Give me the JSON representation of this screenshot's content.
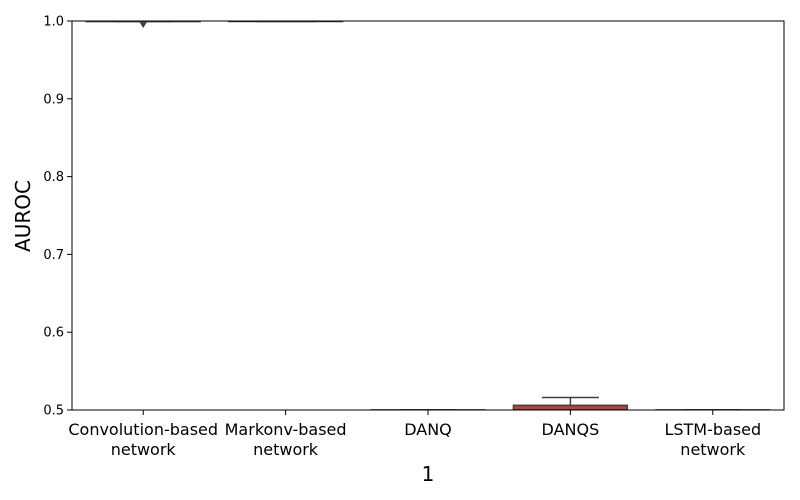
{
  "chart_data": {
    "type": "box",
    "title": "",
    "xlabel": "1",
    "ylabel": "AUROC",
    "ylim": [
      0.5,
      1.0
    ],
    "yticks": [
      "0.5",
      "0.6",
      "0.7",
      "0.8",
      "0.9",
      "1.0"
    ],
    "categories": [
      {
        "label_lines": [
          "Convolution-based",
          "network"
        ],
        "q1": 0.9995,
        "median": 0.9997,
        "q3": 0.9999,
        "whisker_low": 0.9993,
        "whisker_high": 1.0,
        "outliers": [
          0.9935
        ],
        "color": "#3a5fa8"
      },
      {
        "label_lines": [
          "Markonv-based",
          "network"
        ],
        "q1": 0.9996,
        "median": 0.9998,
        "q3": 1.0,
        "whisker_low": 0.9994,
        "whisker_high": 1.0,
        "outliers": [],
        "color": "#e07b39"
      },
      {
        "label_lines": [
          "DANQ"
        ],
        "q1": 0.5,
        "median": 0.5,
        "q3": 0.5,
        "whisker_low": 0.5,
        "whisker_high": 0.5,
        "outliers": [],
        "color": "#3a923a"
      },
      {
        "label_lines": [
          "DANQS"
        ],
        "q1": 0.5,
        "median": 0.5,
        "q3": 0.506,
        "whisker_low": 0.5,
        "whisker_high": 0.516,
        "outliers": [],
        "color": "#c03d3e"
      },
      {
        "label_lines": [
          "LSTM-based",
          "network"
        ],
        "q1": 0.5,
        "median": 0.5,
        "q3": 0.5,
        "whisker_low": 0.5,
        "whisker_high": 0.5,
        "outliers": [],
        "color": "#9372b2"
      }
    ]
  }
}
